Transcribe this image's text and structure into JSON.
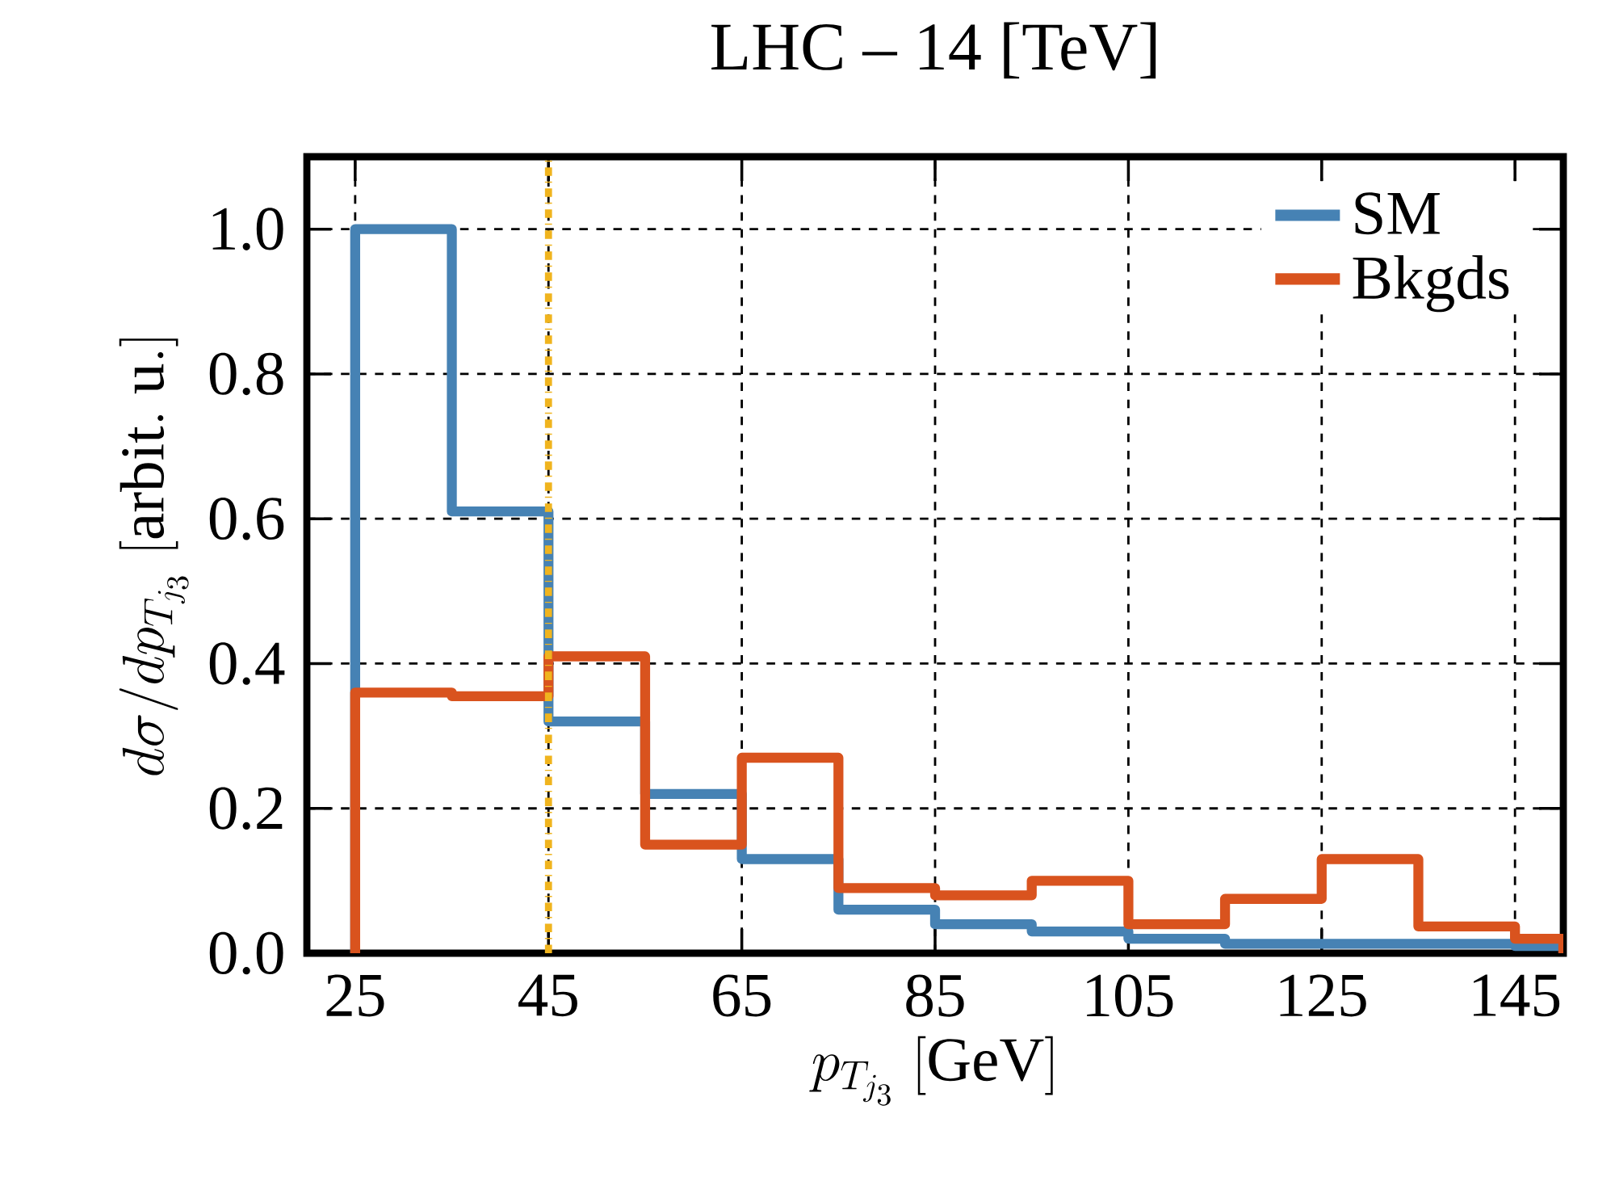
{
  "chart_data": {
    "type": "histogram",
    "title": "LHC – 14 [TeV]",
    "xlabel": "p_{T_{j_3}}\\ \\mathrm{[GeV]}",
    "ylabel": "d\\sigma/dp_{T_{j_3}}\\ \\mathrm{[arbit.\\ u.]}",
    "bins": [
      25,
      35,
      45,
      55,
      65,
      75,
      85,
      95,
      105,
      115,
      125,
      135,
      145,
      150
    ],
    "series": [
      {
        "name": "SM",
        "color": "#4682b4",
        "values": [
          1.0,
          0.61,
          0.32,
          0.22,
          0.13,
          0.06,
          0.04,
          0.03,
          0.02,
          0.013,
          0.013,
          0.013,
          0.01
        ]
      },
      {
        "name": "Bkgds",
        "color": "#d9531e",
        "values": [
          0.36,
          0.355,
          0.41,
          0.15,
          0.27,
          0.09,
          0.08,
          0.1,
          0.04,
          0.075,
          0.13,
          0.037,
          0.02
        ]
      }
    ],
    "xlim": [
      20,
      150
    ],
    "ylim": [
      0,
      1.1
    ],
    "xticks": [
      25,
      45,
      65,
      85,
      105,
      125,
      145
    ],
    "yticks": [
      {
        "value": 0,
        "label": "0.0"
      },
      {
        "value": 0.2,
        "label": "0.2"
      },
      {
        "value": 0.4,
        "label": "0.4"
      },
      {
        "value": 0.6,
        "label": "0.6"
      },
      {
        "value": 0.8,
        "label": "0.8"
      },
      {
        "value": 1.0,
        "label": "1.0"
      }
    ],
    "ref_lines": [
      {
        "axis": "x",
        "value": 45,
        "color": "#f0b41e",
        "line_style": "dashdot"
      }
    ],
    "grid": true,
    "legend": "top right"
  }
}
